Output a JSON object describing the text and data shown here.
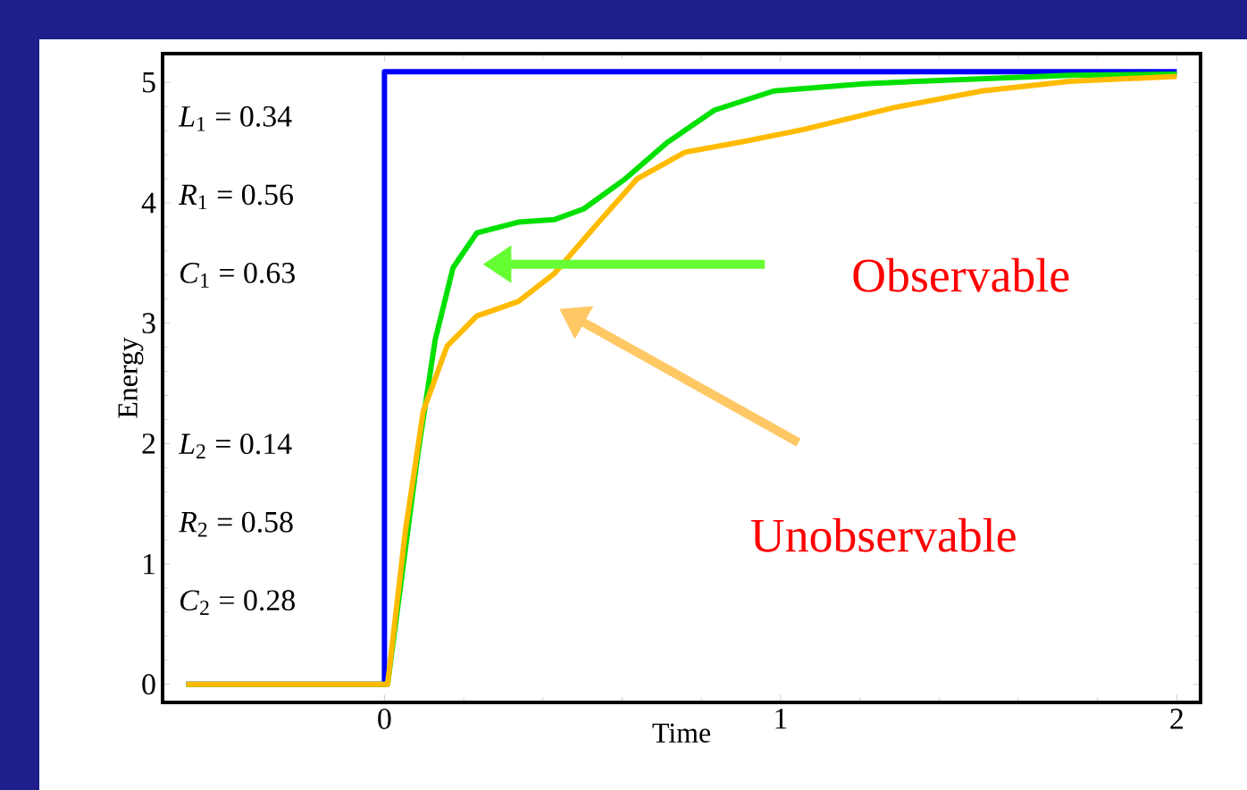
{
  "chart_data": {
    "type": "line",
    "xlabel": "Time",
    "ylabel": "Energy",
    "xlim": [
      -0.56,
      2.06
    ],
    "ylim": [
      -0.15,
      5.24
    ],
    "xticks": [
      0,
      1,
      2
    ],
    "yticks": [
      0,
      1,
      2,
      3,
      4,
      5
    ],
    "grid": false,
    "marker": "none",
    "line_style": "solid",
    "series": [
      {
        "color": "#0000ff",
        "x": [
          -0.5,
          0,
          0,
          2.0
        ],
        "values": [
          0,
          0,
          5.09,
          5.09
        ]
      },
      {
        "color": "#00e000",
        "x": [
          -0.5,
          0,
          0.008,
          0.083,
          0.128,
          0.173,
          0.233,
          0.338,
          0.428,
          0.503,
          0.608,
          0.713,
          0.833,
          0.983,
          1.21,
          1.43,
          1.73,
          2.0
        ],
        "values": [
          0,
          0,
          0,
          1.88,
          2.86,
          3.46,
          3.75,
          3.84,
          3.86,
          3.95,
          4.2,
          4.5,
          4.77,
          4.93,
          4.99,
          5.02,
          5.06,
          5.07
        ]
      },
      {
        "color": "#ffbb00",
        "x": [
          -0.5,
          0,
          0.008,
          0.053,
          0.098,
          0.158,
          0.233,
          0.338,
          0.428,
          0.533,
          0.638,
          0.758,
          0.908,
          1.058,
          1.284,
          1.509,
          1.73,
          2.0
        ],
        "values": [
          0,
          0,
          0,
          1.28,
          2.27,
          2.81,
          3.06,
          3.18,
          3.41,
          3.81,
          4.2,
          4.42,
          4.51,
          4.61,
          4.79,
          4.93,
          5.01,
          5.05
        ]
      }
    ],
    "annotations": [
      "*L*$_{1}$ = 0.34",
      "*R*$_{1}$ = 0.56",
      "*C*$_{1}$ = 0.63",
      "*L*$_{2}$ = 0.14",
      "*R*$_{2}$ = 0.58",
      "*C*$_{2}$ = 0.28",
      "Observable",
      "Unobservable"
    ]
  }
}
